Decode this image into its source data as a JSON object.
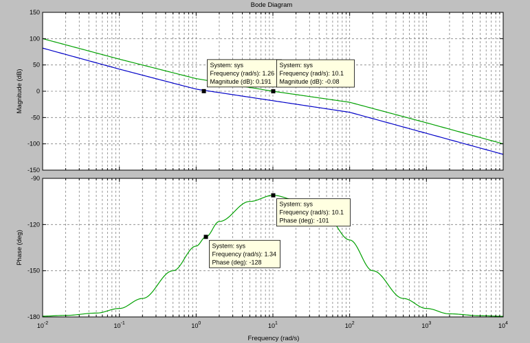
{
  "chart_data": {
    "type": "line",
    "title": "Bode Diagram",
    "xlabel": "Frequency  (rad/s)",
    "x_scale": "log",
    "xlim": [
      0.01,
      10000
    ],
    "x_tick_labels": [
      {
        "base": "10",
        "exp": "-2"
      },
      {
        "base": "10",
        "exp": "-1"
      },
      {
        "base": "10",
        "exp": "0"
      },
      {
        "base": "10",
        "exp": "1"
      },
      {
        "base": "10",
        "exp": "2"
      },
      {
        "base": "10",
        "exp": "3"
      },
      {
        "base": "10",
        "exp": "4"
      }
    ],
    "grid": true,
    "panels": [
      {
        "name": "magnitude",
        "ylabel": "Magnitude (dB)",
        "ylim": [
          -150,
          150
        ],
        "y_ticks": [
          150,
          100,
          50,
          0,
          -50,
          -100,
          -150
        ],
        "y_tick_labels": [
          "150",
          "100",
          "50",
          "0",
          "-50",
          "-100",
          "-150"
        ],
        "series": [
          {
            "color": "#00a000",
            "x": [
              0.01,
              0.1,
              1,
              10,
              100,
              1000,
              10000
            ],
            "y": [
              100,
              61,
              24,
              0,
              -21,
              -60,
              -100
            ]
          },
          {
            "color": "#0000c8",
            "x": [
              0.01,
              0.1,
              1,
              10,
              100,
              1000,
              10000
            ],
            "y": [
              82,
              42,
              4,
              -18,
              -40,
              -80,
              -120
            ]
          }
        ],
        "datatips": [
          {
            "x": 1.26,
            "y": 0.191,
            "lines": [
              "System: sys",
              "Frequency (rad/s): 1.26",
              "Magnitude (dB): 0.191"
            ]
          },
          {
            "x": 10.1,
            "y": -0.08,
            "lines": [
              "System: sys",
              "Frequency (rad/s): 10.1",
              "Magnitude (dB): -0.08"
            ]
          }
        ]
      },
      {
        "name": "phase",
        "ylabel": "Phase (deg)",
        "ylim": [
          -180,
          -90
        ],
        "y_ticks": [
          -90,
          -120,
          -150,
          -180
        ],
        "y_tick_labels": [
          "-90",
          "-120",
          "-150",
          "-180"
        ],
        "series": [
          {
            "color": "#00a000",
            "x": [
              0.01,
              0.02,
              0.05,
              0.1,
              0.2,
              0.5,
              1,
              1.34,
              2,
              5,
              10.1,
              20,
              50,
              100,
              200,
              500,
              1000,
              2000,
              5000,
              10000
            ],
            "y": [
              -179.5,
              -179,
              -177.5,
              -174.5,
              -168,
              -150,
              -134,
              -128,
              -118,
              -105,
              -101,
              -104,
              -115,
              -130,
              -150,
              -168,
              -174.5,
              -178,
              -179.2,
              -179.6
            ]
          }
        ],
        "datatips": [
          {
            "x": 1.34,
            "y": -128,
            "lines": [
              "System: sys",
              "Frequency (rad/s): 1.34",
              "Phase (deg): -128"
            ]
          },
          {
            "x": 10.1,
            "y": -101,
            "lines": [
              "System: sys",
              "Frequency (rad/s): 10.1",
              "Phase (deg): -101"
            ]
          }
        ]
      }
    ]
  },
  "colors": {
    "figure_background": "#c0c0c0",
    "axes_background": "#ffffff",
    "grid": "#808080",
    "datatip_background": "#ffffe1",
    "datatip_marker": "#000000"
  }
}
